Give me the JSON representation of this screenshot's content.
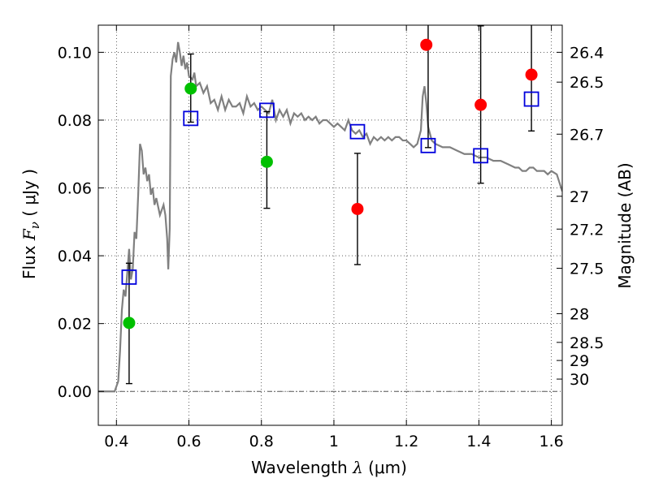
{
  "chart_data": {
    "type": "scatter",
    "xlabel_prefix": "Wavelength ",
    "xlabel_symbol": "λ",
    "xlabel_unit": " (μm)",
    "ylabel_prefix": "Flux ",
    "ylabel_symbol": "F",
    "ylabel_subscript": "ν",
    "ylabel_unit": " ( μJy )",
    "ylabel_right": "Magnitude (AB)",
    "xlim": [
      0.35,
      1.63
    ],
    "ylim": [
      -0.01,
      0.108
    ],
    "grid": true,
    "x_ticks": [
      0.4,
      0.6,
      0.8,
      1.0,
      1.2,
      1.4,
      1.6
    ],
    "x_tick_labels": [
      "0.4",
      "0.6",
      "0.8",
      "1",
      "1.2",
      "1.4",
      "1.6"
    ],
    "y_ticks": [
      0.0,
      0.02,
      0.04,
      0.06,
      0.08,
      0.1
    ],
    "y_tick_labels": [
      "0.00",
      "0.02",
      "0.04",
      "0.06",
      "0.08",
      "0.10"
    ],
    "mag_ticks": [
      {
        "mag": 26.4,
        "label": "26.4"
      },
      {
        "mag": 26.5,
        "label": "26.5"
      },
      {
        "mag": 26.7,
        "label": "26.7"
      },
      {
        "mag": 27.0,
        "label": "27"
      },
      {
        "mag": 27.2,
        "label": "27.2"
      },
      {
        "mag": 27.5,
        "label": "27.5"
      },
      {
        "mag": 28.0,
        "label": "28"
      },
      {
        "mag": 28.5,
        "label": "28.5"
      },
      {
        "mag": 29.0,
        "label": "29"
      },
      {
        "mag": 30.0,
        "label": "30"
      }
    ],
    "series": [
      {
        "name": "model SED",
        "kind": "line",
        "color": "#808080",
        "points": [
          [
            0.35,
            0.0
          ],
          [
            0.395,
            0.0
          ],
          [
            0.405,
            0.003
          ],
          [
            0.41,
            0.012
          ],
          [
            0.415,
            0.024
          ],
          [
            0.42,
            0.03
          ],
          [
            0.425,
            0.028
          ],
          [
            0.43,
            0.035
          ],
          [
            0.435,
            0.042
          ],
          [
            0.44,
            0.033
          ],
          [
            0.445,
            0.036
          ],
          [
            0.45,
            0.047
          ],
          [
            0.455,
            0.045
          ],
          [
            0.46,
            0.058
          ],
          [
            0.465,
            0.073
          ],
          [
            0.47,
            0.071
          ],
          [
            0.475,
            0.064
          ],
          [
            0.48,
            0.066
          ],
          [
            0.485,
            0.062
          ],
          [
            0.49,
            0.064
          ],
          [
            0.495,
            0.058
          ],
          [
            0.5,
            0.06
          ],
          [
            0.505,
            0.055
          ],
          [
            0.51,
            0.057
          ],
          [
            0.52,
            0.052
          ],
          [
            0.53,
            0.055
          ],
          [
            0.535,
            0.052
          ],
          [
            0.54,
            0.045
          ],
          [
            0.543,
            0.036
          ],
          [
            0.547,
            0.048
          ],
          [
            0.55,
            0.093
          ],
          [
            0.555,
            0.098
          ],
          [
            0.56,
            0.1
          ],
          [
            0.565,
            0.097
          ],
          [
            0.57,
            0.103
          ],
          [
            0.575,
            0.1
          ],
          [
            0.58,
            0.096
          ],
          [
            0.585,
            0.099
          ],
          [
            0.59,
            0.095
          ],
          [
            0.595,
            0.097
          ],
          [
            0.6,
            0.093
          ],
          [
            0.61,
            0.092
          ],
          [
            0.615,
            0.094
          ],
          [
            0.62,
            0.09
          ],
          [
            0.63,
            0.091
          ],
          [
            0.64,
            0.088
          ],
          [
            0.65,
            0.09
          ],
          [
            0.66,
            0.085
          ],
          [
            0.67,
            0.086
          ],
          [
            0.68,
            0.083
          ],
          [
            0.69,
            0.087
          ],
          [
            0.7,
            0.083
          ],
          [
            0.71,
            0.086
          ],
          [
            0.72,
            0.084
          ],
          [
            0.73,
            0.084
          ],
          [
            0.74,
            0.085
          ],
          [
            0.75,
            0.082
          ],
          [
            0.76,
            0.087
          ],
          [
            0.77,
            0.084
          ],
          [
            0.78,
            0.085
          ],
          [
            0.79,
            0.083
          ],
          [
            0.8,
            0.084
          ],
          [
            0.81,
            0.083
          ],
          [
            0.82,
            0.082
          ],
          [
            0.83,
            0.086
          ],
          [
            0.84,
            0.08
          ],
          [
            0.85,
            0.083
          ],
          [
            0.86,
            0.081
          ],
          [
            0.87,
            0.083
          ],
          [
            0.88,
            0.079
          ],
          [
            0.89,
            0.082
          ],
          [
            0.9,
            0.081
          ],
          [
            0.91,
            0.082
          ],
          [
            0.92,
            0.08
          ],
          [
            0.93,
            0.081
          ],
          [
            0.94,
            0.08
          ],
          [
            0.95,
            0.081
          ],
          [
            0.96,
            0.079
          ],
          [
            0.97,
            0.08
          ],
          [
            0.98,
            0.08
          ],
          [
            0.99,
            0.079
          ],
          [
            1.0,
            0.078
          ],
          [
            1.01,
            0.079
          ],
          [
            1.02,
            0.078
          ],
          [
            1.03,
            0.077
          ],
          [
            1.04,
            0.08
          ],
          [
            1.05,
            0.077
          ],
          [
            1.06,
            0.076
          ],
          [
            1.07,
            0.077
          ],
          [
            1.08,
            0.075
          ],
          [
            1.09,
            0.076
          ],
          [
            1.1,
            0.073
          ],
          [
            1.11,
            0.075
          ],
          [
            1.12,
            0.074
          ],
          [
            1.13,
            0.075
          ],
          [
            1.14,
            0.074
          ],
          [
            1.15,
            0.075
          ],
          [
            1.16,
            0.074
          ],
          [
            1.17,
            0.075
          ],
          [
            1.18,
            0.075
          ],
          [
            1.19,
            0.074
          ],
          [
            1.2,
            0.074
          ],
          [
            1.21,
            0.073
          ],
          [
            1.22,
            0.072
          ],
          [
            1.23,
            0.073
          ],
          [
            1.24,
            0.077
          ],
          [
            1.245,
            0.087
          ],
          [
            1.25,
            0.09
          ],
          [
            1.255,
            0.085
          ],
          [
            1.26,
            0.078
          ],
          [
            1.27,
            0.074
          ],
          [
            1.28,
            0.073
          ],
          [
            1.3,
            0.072
          ],
          [
            1.32,
            0.072
          ],
          [
            1.34,
            0.071
          ],
          [
            1.36,
            0.07
          ],
          [
            1.38,
            0.07
          ],
          [
            1.4,
            0.069
          ],
          [
            1.42,
            0.069
          ],
          [
            1.44,
            0.068
          ],
          [
            1.46,
            0.068
          ],
          [
            1.48,
            0.067
          ],
          [
            1.5,
            0.066
          ],
          [
            1.51,
            0.066
          ],
          [
            1.52,
            0.065
          ],
          [
            1.53,
            0.065
          ],
          [
            1.54,
            0.066
          ],
          [
            1.55,
            0.066
          ],
          [
            1.56,
            0.065
          ],
          [
            1.57,
            0.065
          ],
          [
            1.58,
            0.065
          ],
          [
            1.59,
            0.064
          ],
          [
            1.6,
            0.065
          ],
          [
            1.615,
            0.064
          ],
          [
            1.63,
            0.059
          ]
        ]
      },
      {
        "name": "green points",
        "kind": "dots",
        "color": "#00c000",
        "points": [
          {
            "x": 0.435,
            "y": 0.0202
          },
          {
            "x": 0.605,
            "y": 0.0893
          },
          {
            "x": 0.815,
            "y": 0.0677
          }
        ]
      },
      {
        "name": "red points",
        "kind": "dots",
        "color": "#ff0000",
        "points": [
          {
            "x": 1.065,
            "y": 0.0538
          },
          {
            "x": 1.255,
            "y": 0.1022
          },
          {
            "x": 1.405,
            "y": 0.0845
          },
          {
            "x": 1.545,
            "y": 0.0934
          }
        ]
      },
      {
        "name": "model photometry",
        "kind": "squares",
        "color": "#0000dd",
        "points": [
          {
            "x": 0.435,
            "y": 0.0337
          },
          {
            "x": 0.605,
            "y": 0.0805
          },
          {
            "x": 0.815,
            "y": 0.0829
          },
          {
            "x": 1.065,
            "y": 0.0766
          },
          {
            "x": 1.26,
            "y": 0.0725
          },
          {
            "x": 1.405,
            "y": 0.0695
          },
          {
            "x": 1.545,
            "y": 0.0862
          }
        ]
      },
      {
        "name": "error bars",
        "kind": "errorbars",
        "color": "#000000",
        "bars": [
          {
            "x": 0.435,
            "lo": 0.0023,
            "hi": 0.0378
          },
          {
            "x": 0.605,
            "lo": 0.0794,
            "hi": 0.0995
          },
          {
            "x": 0.815,
            "lo": 0.054,
            "hi": 0.0825
          },
          {
            "x": 1.065,
            "lo": 0.0374,
            "hi": 0.0702
          },
          {
            "x": 1.26,
            "lo": 0.0719,
            "hi": 0.108
          },
          {
            "x": 1.405,
            "lo": 0.0614,
            "hi": 0.1078
          },
          {
            "x": 1.545,
            "lo": 0.0768,
            "hi": 0.108
          }
        ]
      }
    ]
  }
}
